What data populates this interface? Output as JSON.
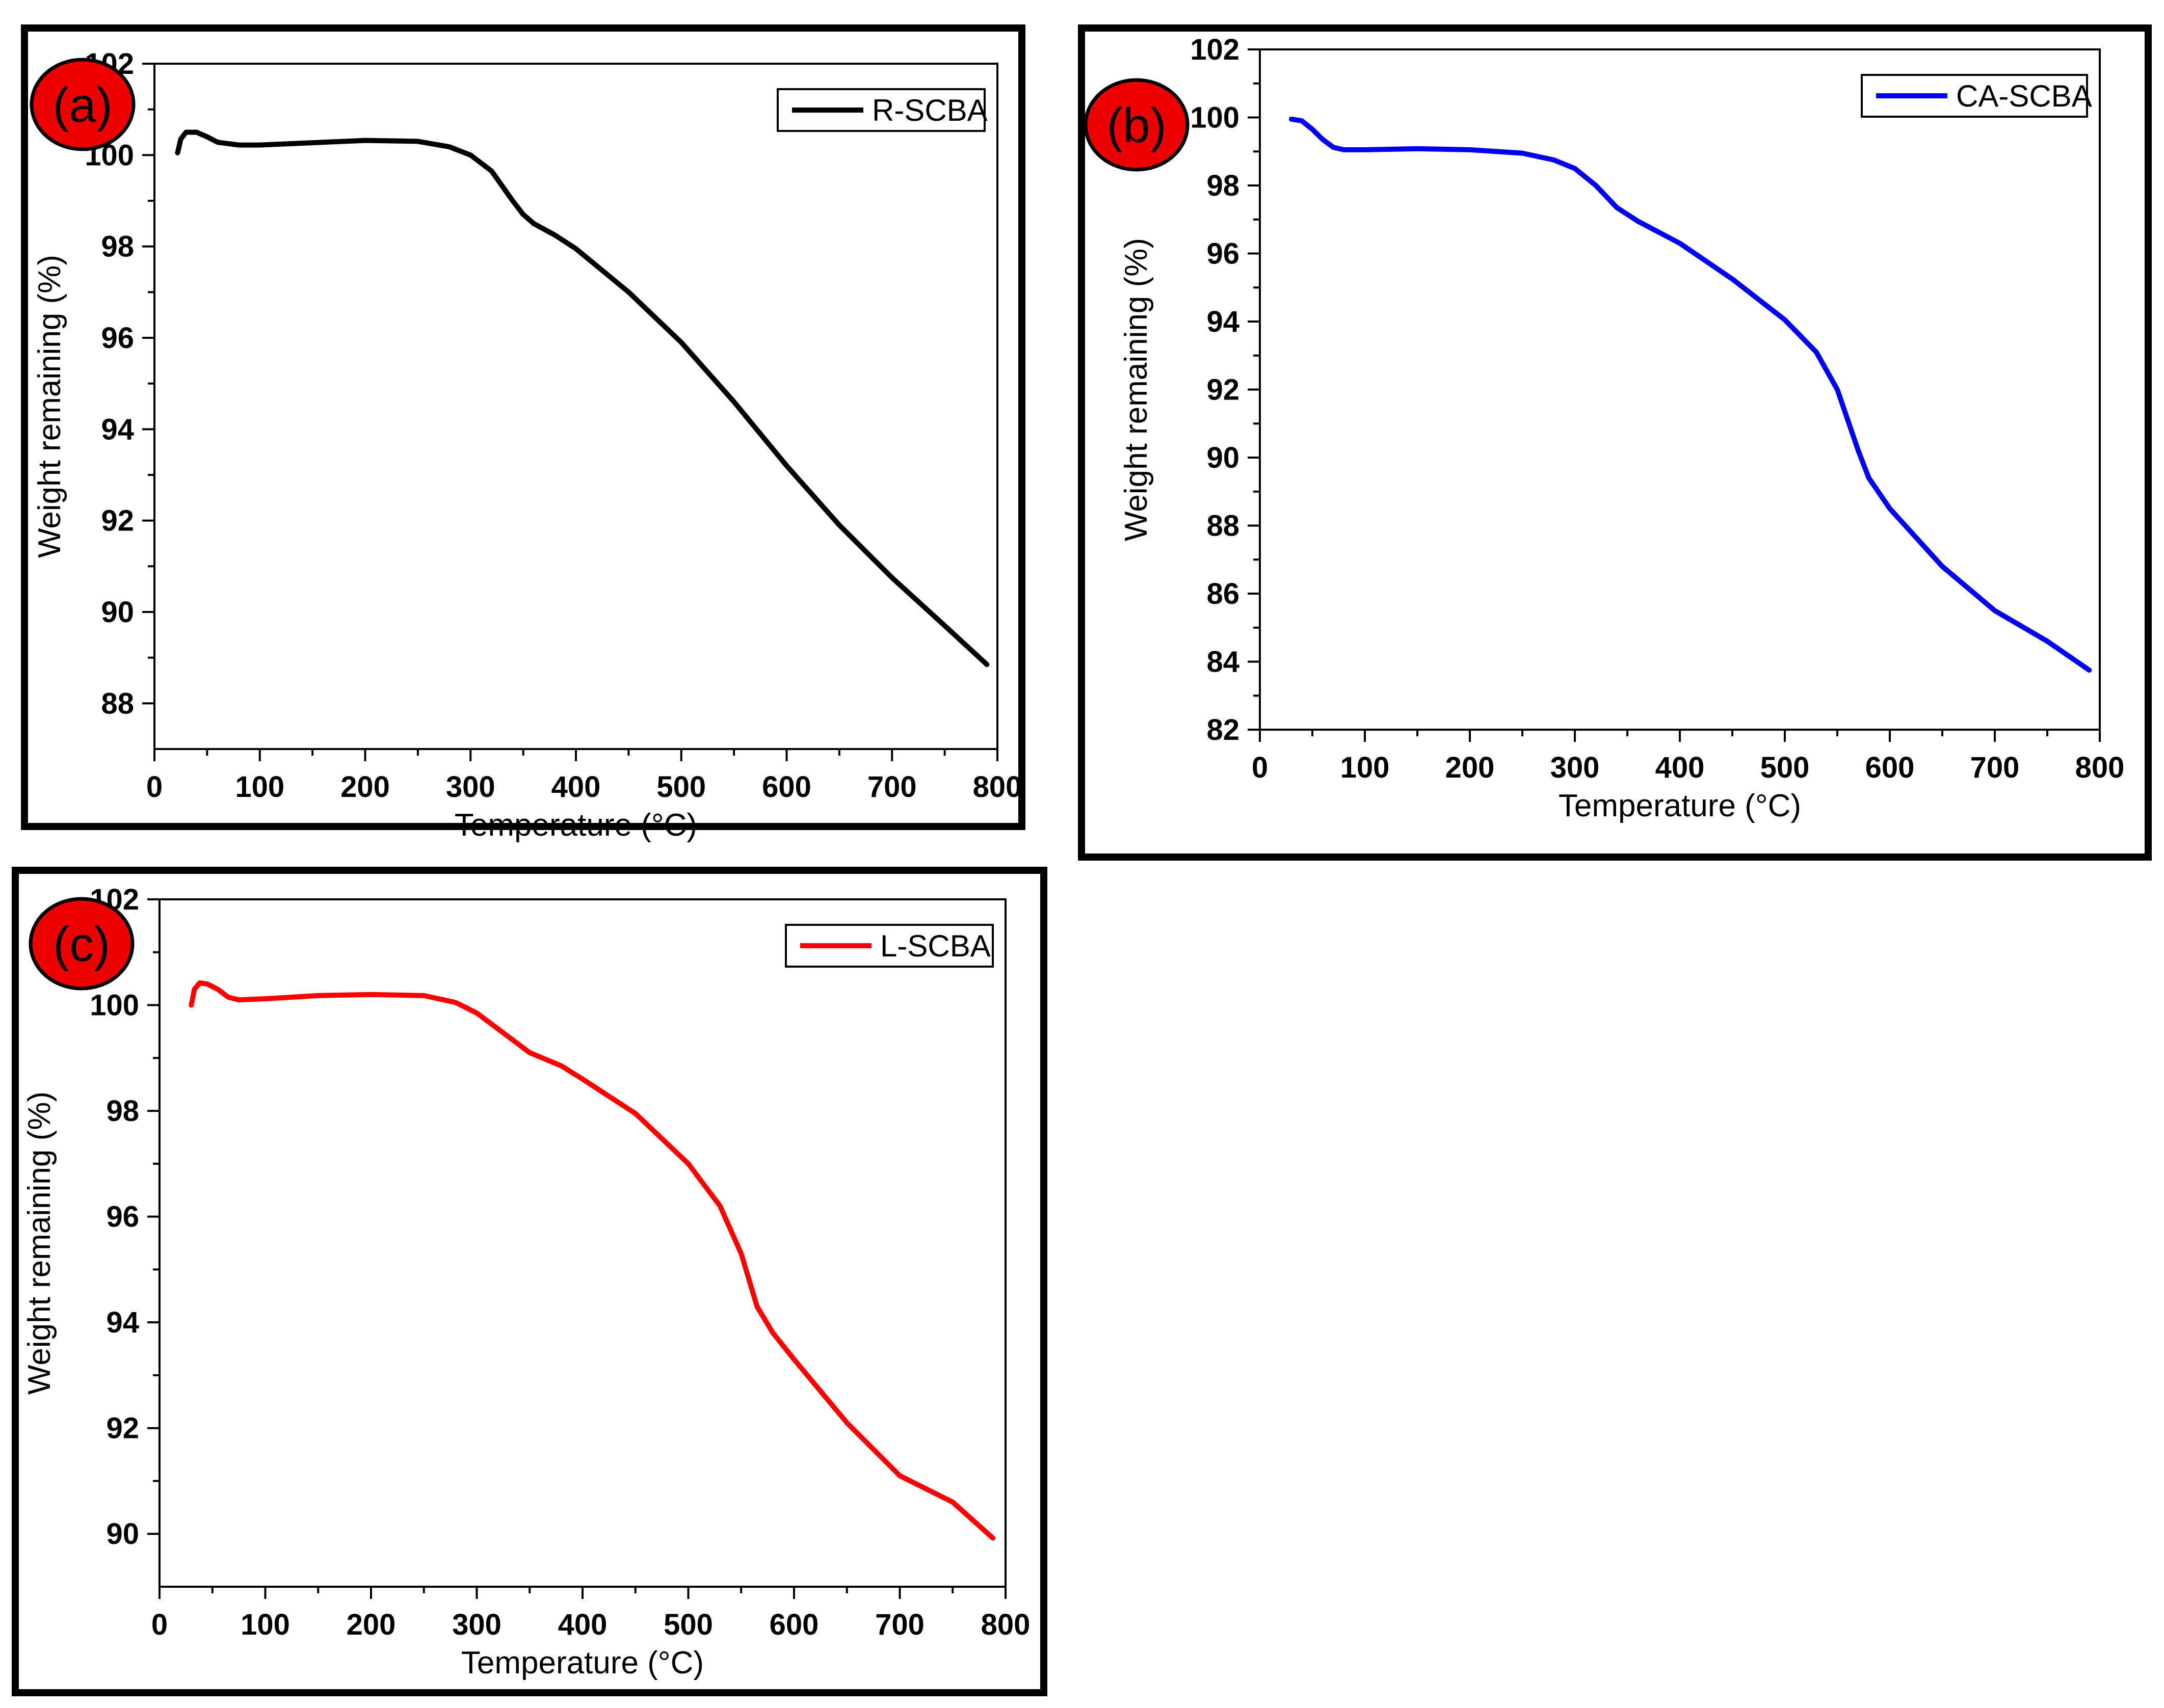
{
  "chart_data": [
    {
      "type": "line",
      "panel_label": "(a)",
      "xlabel": "Temperature (°C)",
      "ylabel": "Weight remaining (%)",
      "xlim": [
        0,
        800
      ],
      "ylim": [
        87,
        102
      ],
      "x_ticks": [
        "0",
        "100",
        "200",
        "300",
        "400",
        "500",
        "600",
        "700",
        "800"
      ],
      "y_ticks": [
        "88",
        "90",
        "92",
        "94",
        "96",
        "98",
        "100",
        "102"
      ],
      "legend": "top-right",
      "series": [
        {
          "name": "R-SCBA",
          "color": "#000000",
          "x": [
            22,
            25,
            30,
            40,
            50,
            60,
            80,
            100,
            150,
            200,
            250,
            280,
            300,
            320,
            340,
            350,
            360,
            380,
            400,
            450,
            500,
            550,
            600,
            650,
            700,
            750,
            790
          ],
          "y": [
            100.05,
            100.35,
            100.5,
            100.5,
            100.4,
            100.28,
            100.22,
            100.22,
            100.27,
            100.32,
            100.3,
            100.18,
            100.0,
            99.65,
            99.0,
            98.7,
            98.5,
            98.25,
            97.95,
            97.0,
            95.9,
            94.6,
            93.2,
            91.9,
            90.75,
            89.7,
            88.85
          ]
        }
      ]
    },
    {
      "type": "line",
      "panel_label": "(b)",
      "xlabel": "Temperature (°C)",
      "ylabel": "Weight remaining (%)",
      "xlim": [
        0,
        800
      ],
      "ylim": [
        82,
        102
      ],
      "x_ticks": [
        "0",
        "100",
        "200",
        "300",
        "400",
        "500",
        "600",
        "700",
        "800"
      ],
      "y_ticks": [
        "82",
        "84",
        "86",
        "88",
        "90",
        "92",
        "94",
        "96",
        "98",
        "100",
        "102"
      ],
      "legend": "top-right",
      "series": [
        {
          "name": "CA-SCBA",
          "color": "#0000ee",
          "x": [
            30,
            40,
            50,
            60,
            70,
            80,
            100,
            150,
            200,
            250,
            280,
            300,
            320,
            340,
            360,
            400,
            450,
            500,
            530,
            550,
            570,
            580,
            600,
            650,
            700,
            750,
            790
          ],
          "y": [
            99.95,
            99.9,
            99.65,
            99.35,
            99.12,
            99.05,
            99.05,
            99.08,
            99.05,
            98.95,
            98.75,
            98.5,
            98.0,
            97.35,
            96.95,
            96.3,
            95.25,
            94.05,
            93.1,
            92.0,
            90.2,
            89.4,
            88.5,
            86.8,
            85.5,
            84.6,
            83.75
          ]
        }
      ]
    },
    {
      "type": "line",
      "panel_label": "(c)",
      "xlabel": "Temperature (°C)",
      "ylabel": "Weight remaining (%)",
      "xlim": [
        0,
        800
      ],
      "ylim": [
        89,
        102
      ],
      "x_ticks": [
        "0",
        "100",
        "200",
        "300",
        "400",
        "500",
        "600",
        "700",
        "800"
      ],
      "y_ticks": [
        "90",
        "92",
        "94",
        "96",
        "98",
        "100",
        "102"
      ],
      "legend": "top-right",
      "series": [
        {
          "name": "L-SCBA",
          "color": "#ff0000",
          "x": [
            30,
            33,
            38,
            45,
            55,
            65,
            75,
            100,
            150,
            200,
            250,
            280,
            300,
            330,
            350,
            380,
            400,
            450,
            500,
            530,
            550,
            565,
            580,
            600,
            650,
            700,
            750,
            788
          ],
          "y": [
            100.0,
            100.3,
            100.42,
            100.4,
            100.3,
            100.15,
            100.1,
            100.12,
            100.18,
            100.2,
            100.18,
            100.05,
            99.85,
            99.4,
            99.1,
            98.85,
            98.6,
            97.95,
            97.0,
            96.2,
            95.3,
            94.3,
            93.8,
            93.3,
            92.1,
            91.1,
            90.6,
            89.92
          ]
        }
      ]
    }
  ]
}
